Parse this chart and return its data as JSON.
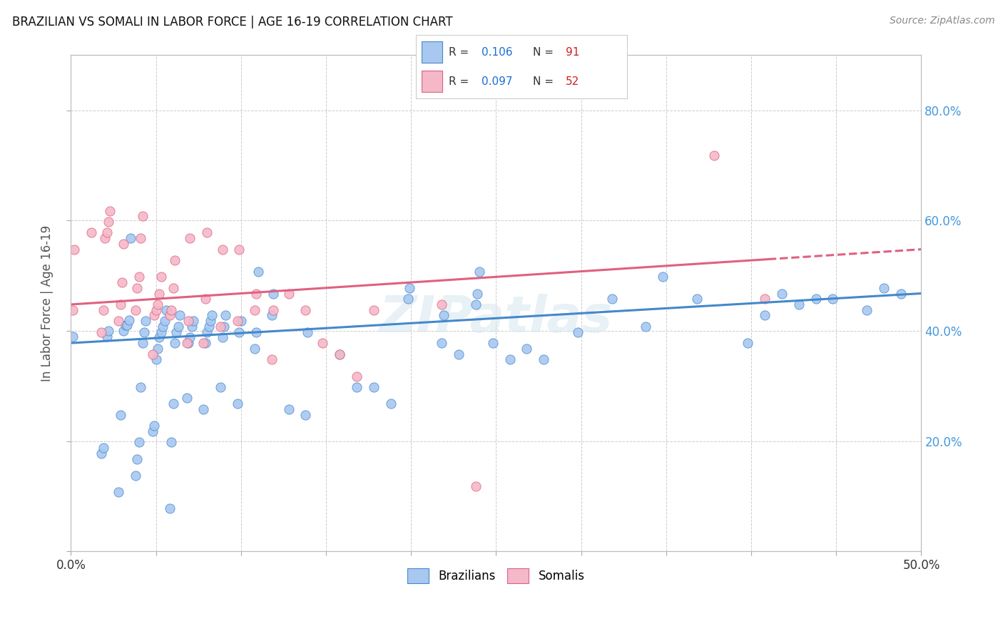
{
  "title": "BRAZILIAN VS SOMALI IN LABOR FORCE | AGE 16-19 CORRELATION CHART",
  "source": "Source: ZipAtlas.com",
  "ylabel": "In Labor Force | Age 16-19",
  "xlim": [
    0.0,
    0.5
  ],
  "ylim": [
    0.0,
    0.9
  ],
  "brazilian_color": "#a8c8f0",
  "somali_color": "#f4b8c8",
  "trend_brazilian_color": "#4488cc",
  "trend_somali_color": "#e06080",
  "R_brazilian": "0.106",
  "N_brazilian": "91",
  "R_somali": "0.097",
  "N_somali": "52",
  "watermark": "ZIPatlas",
  "background_color": "#ffffff",
  "grid_color": "#cccccc",
  "legend_label_color": "#333333",
  "legend_value_color": "#1a6fd4",
  "legend_n_color": "#cc2222",
  "brazilian_x": [
    0.001,
    0.018,
    0.019,
    0.021,
    0.022,
    0.028,
    0.029,
    0.031,
    0.032,
    0.033,
    0.034,
    0.035,
    0.038,
    0.039,
    0.04,
    0.041,
    0.042,
    0.043,
    0.044,
    0.048,
    0.049,
    0.05,
    0.051,
    0.052,
    0.053,
    0.054,
    0.055,
    0.056,
    0.058,
    0.059,
    0.06,
    0.061,
    0.062,
    0.063,
    0.064,
    0.068,
    0.069,
    0.07,
    0.071,
    0.072,
    0.078,
    0.079,
    0.08,
    0.081,
    0.082,
    0.083,
    0.088,
    0.089,
    0.09,
    0.091,
    0.098,
    0.099,
    0.1,
    0.108,
    0.109,
    0.11,
    0.118,
    0.119,
    0.128,
    0.138,
    0.139,
    0.158,
    0.168,
    0.178,
    0.188,
    0.198,
    0.199,
    0.218,
    0.219,
    0.228,
    0.238,
    0.239,
    0.24,
    0.248,
    0.258,
    0.268,
    0.278,
    0.298,
    0.318,
    0.338,
    0.348,
    0.368,
    0.398,
    0.408,
    0.418,
    0.428,
    0.438,
    0.448,
    0.468,
    0.478,
    0.488
  ],
  "brazilian_y": [
    0.39,
    0.178,
    0.188,
    0.39,
    0.4,
    0.108,
    0.248,
    0.4,
    0.41,
    0.41,
    0.42,
    0.568,
    0.138,
    0.168,
    0.198,
    0.298,
    0.378,
    0.398,
    0.418,
    0.218,
    0.228,
    0.348,
    0.368,
    0.388,
    0.398,
    0.408,
    0.418,
    0.438,
    0.078,
    0.198,
    0.268,
    0.378,
    0.398,
    0.408,
    0.428,
    0.278,
    0.378,
    0.388,
    0.408,
    0.418,
    0.258,
    0.378,
    0.398,
    0.408,
    0.418,
    0.428,
    0.298,
    0.388,
    0.408,
    0.428,
    0.268,
    0.398,
    0.418,
    0.368,
    0.398,
    0.508,
    0.428,
    0.468,
    0.258,
    0.248,
    0.398,
    0.358,
    0.298,
    0.298,
    0.268,
    0.458,
    0.478,
    0.378,
    0.428,
    0.358,
    0.448,
    0.468,
    0.508,
    0.378,
    0.348,
    0.368,
    0.348,
    0.398,
    0.458,
    0.408,
    0.498,
    0.458,
    0.378,
    0.428,
    0.468,
    0.448,
    0.458,
    0.458,
    0.438,
    0.478,
    0.468
  ],
  "somali_x": [
    0.001,
    0.002,
    0.012,
    0.018,
    0.019,
    0.02,
    0.021,
    0.022,
    0.023,
    0.028,
    0.029,
    0.03,
    0.031,
    0.038,
    0.039,
    0.04,
    0.041,
    0.042,
    0.048,
    0.049,
    0.05,
    0.051,
    0.052,
    0.053,
    0.058,
    0.059,
    0.06,
    0.061,
    0.068,
    0.069,
    0.07,
    0.078,
    0.079,
    0.08,
    0.088,
    0.089,
    0.098,
    0.099,
    0.108,
    0.109,
    0.118,
    0.119,
    0.128,
    0.138,
    0.148,
    0.158,
    0.168,
    0.178,
    0.218,
    0.238,
    0.378,
    0.408
  ],
  "somali_y": [
    0.438,
    0.548,
    0.578,
    0.398,
    0.438,
    0.568,
    0.578,
    0.598,
    0.618,
    0.418,
    0.448,
    0.488,
    0.558,
    0.438,
    0.478,
    0.498,
    0.568,
    0.608,
    0.358,
    0.428,
    0.438,
    0.448,
    0.468,
    0.498,
    0.428,
    0.438,
    0.478,
    0.528,
    0.378,
    0.418,
    0.568,
    0.378,
    0.458,
    0.578,
    0.408,
    0.548,
    0.418,
    0.548,
    0.438,
    0.468,
    0.348,
    0.438,
    0.468,
    0.438,
    0.378,
    0.358,
    0.318,
    0.438,
    0.448,
    0.118,
    0.718,
    0.458
  ],
  "trend_braz_x0": 0.0,
  "trend_braz_x1": 0.5,
  "trend_braz_y0": 0.378,
  "trend_braz_y1": 0.468,
  "trend_som_x0": 0.0,
  "trend_som_x1": 0.5,
  "trend_som_y0": 0.448,
  "trend_som_y1": 0.548,
  "trend_som_solid_x1": 0.41
}
